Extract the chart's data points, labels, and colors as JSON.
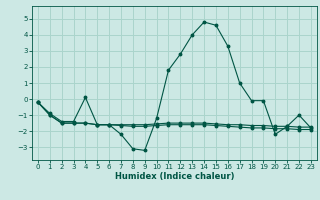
{
  "xlabel": "Humidex (Indice chaleur)",
  "background_color": "#cce8e4",
  "grid_color": "#aad4cc",
  "line_color": "#005544",
  "xlim": [
    -0.5,
    23.5
  ],
  "ylim": [
    -3.8,
    5.8
  ],
  "yticks": [
    -3,
    -2,
    -1,
    0,
    1,
    2,
    3,
    4,
    5
  ],
  "xticks": [
    0,
    1,
    2,
    3,
    4,
    5,
    6,
    7,
    8,
    9,
    10,
    11,
    12,
    13,
    14,
    15,
    16,
    17,
    18,
    19,
    20,
    21,
    22,
    23
  ],
  "series1": {
    "x": [
      0,
      1,
      2,
      3,
      4,
      5,
      6,
      7,
      8,
      9,
      10,
      11,
      12,
      13,
      14,
      15,
      16,
      17,
      18,
      19,
      20,
      21,
      22,
      23
    ],
    "y": [
      -0.2,
      -0.9,
      -1.4,
      -1.4,
      0.1,
      -1.6,
      -1.6,
      -2.2,
      -3.1,
      -3.2,
      -1.2,
      1.8,
      2.8,
      4.0,
      4.8,
      4.6,
      3.3,
      1.0,
      -0.1,
      -0.1,
      -2.2,
      -1.7,
      -1.0,
      -1.8
    ]
  },
  "series2": {
    "x": [
      0,
      1,
      2,
      3,
      4,
      5,
      6,
      7,
      8,
      9,
      10,
      11,
      12,
      13,
      14,
      15,
      16,
      17,
      18,
      19,
      20,
      21,
      22,
      23
    ],
    "y": [
      -0.2,
      -1.0,
      -1.5,
      -1.5,
      -1.5,
      -1.6,
      -1.6,
      -1.6,
      -1.6,
      -1.6,
      -1.55,
      -1.5,
      -1.5,
      -1.5,
      -1.5,
      -1.55,
      -1.6,
      -1.6,
      -1.65,
      -1.65,
      -1.7,
      -1.7,
      -1.75,
      -1.75
    ]
  },
  "series3": {
    "x": [
      0,
      1,
      2,
      3,
      4,
      5,
      6,
      7,
      8,
      9,
      10,
      11,
      12,
      13,
      14,
      15,
      16,
      17,
      18,
      19,
      20,
      21,
      22,
      23
    ],
    "y": [
      -0.2,
      -1.0,
      -1.5,
      -1.5,
      -1.5,
      -1.6,
      -1.6,
      -1.65,
      -1.7,
      -1.7,
      -1.65,
      -1.6,
      -1.6,
      -1.6,
      -1.6,
      -1.65,
      -1.7,
      -1.75,
      -1.8,
      -1.8,
      -1.85,
      -1.85,
      -1.9,
      -1.9
    ]
  }
}
